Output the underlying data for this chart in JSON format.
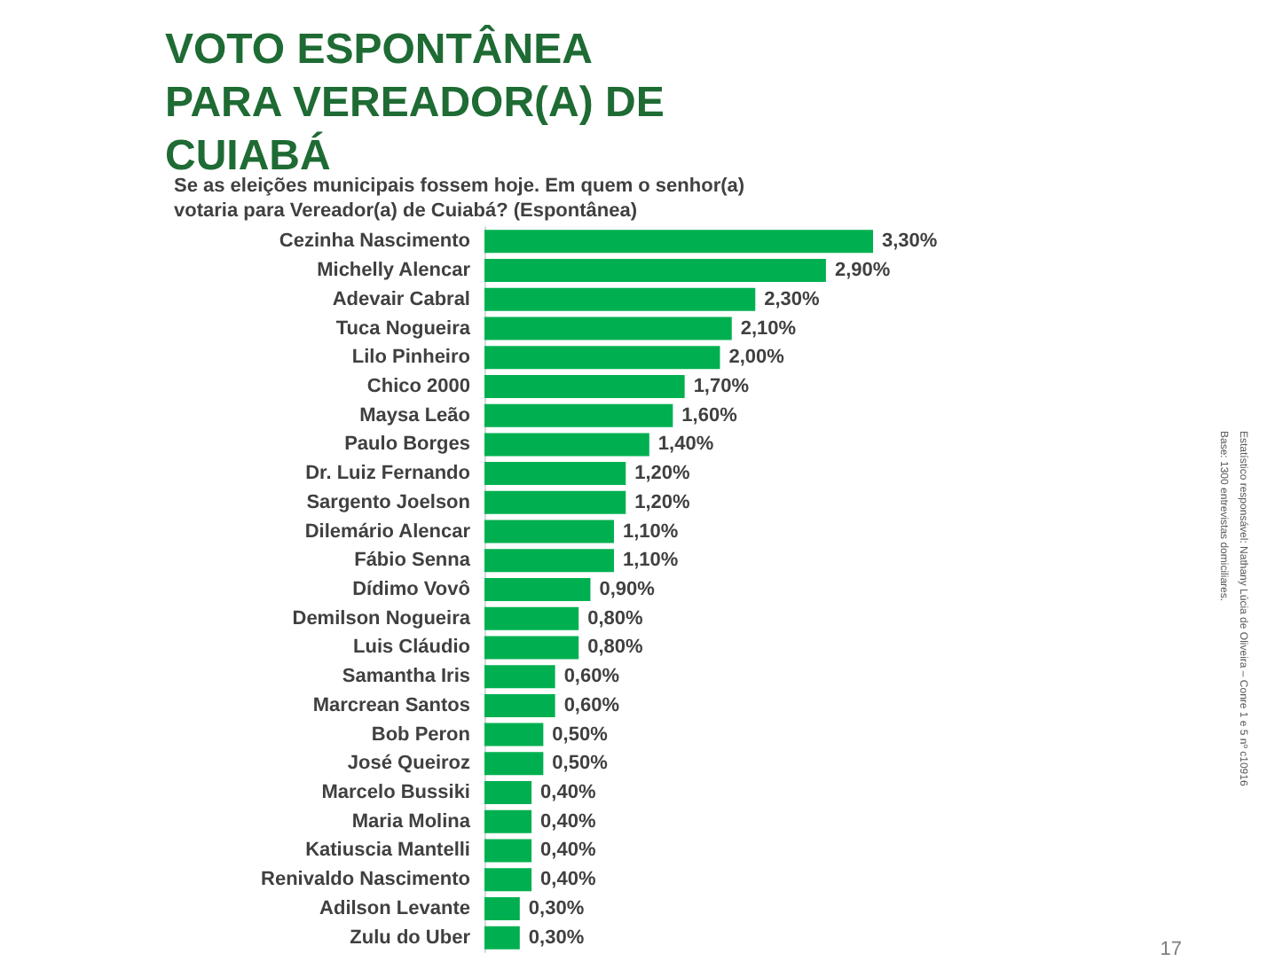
{
  "chart_data": {
    "type": "bar",
    "orientation": "horizontal",
    "title": "VOTO ESPONTÂNEA PARA VEREADOR(A) DE CUIABÁ",
    "subtitle": "Se as eleições municipais fossem hoje. Em quem o senhor(a) votaria para Vereador(a) de Cuiabá? (Espontânea)",
    "categories": [
      "Cezinha Nascimento",
      "Michelly Alencar",
      "Adevair Cabral",
      "Tuca Nogueira",
      "Lilo Pinheiro",
      "Chico 2000",
      "Maysa Leão",
      "Paulo Borges",
      "Dr. Luiz Fernando",
      "Sargento Joelson",
      "Dilemário Alencar",
      "Fábio Senna",
      "Dídimo Vovô",
      "Demilson Nogueira",
      "Luis Cláudio",
      "Samantha Iris",
      "Marcrean Santos",
      "Bob Peron",
      "José Queiroz",
      "Marcelo Bussiki",
      "Maria Molina",
      "Katiuscia Mantelli",
      "Renivaldo Nascimento",
      "Adilson Levante",
      "Zulu do Uber"
    ],
    "values": [
      3.3,
      2.9,
      2.3,
      2.1,
      2.0,
      1.7,
      1.6,
      1.4,
      1.2,
      1.2,
      1.1,
      1.1,
      0.9,
      0.8,
      0.8,
      0.6,
      0.6,
      0.5,
      0.5,
      0.4,
      0.4,
      0.4,
      0.4,
      0.3,
      0.3
    ],
    "value_labels": [
      "3,30%",
      "2,90%",
      "2,30%",
      "2,10%",
      "2,00%",
      "1,70%",
      "1,60%",
      "1,40%",
      "1,20%",
      "1,20%",
      "1,10%",
      "1,10%",
      "0,90%",
      "0,80%",
      "0,80%",
      "0,60%",
      "0,60%",
      "0,50%",
      "0,50%",
      "0,40%",
      "0,40%",
      "0,40%",
      "0,40%",
      "0,30%",
      "0,30%"
    ],
    "color": "#00b050",
    "annotations": [
      "Base: 1300 entrevistas domiciliares.",
      "Estatístico responsável: Nathany Lúcia de Oliveira – Conre 1 e 5 nº c10916",
      "17"
    ]
  }
}
